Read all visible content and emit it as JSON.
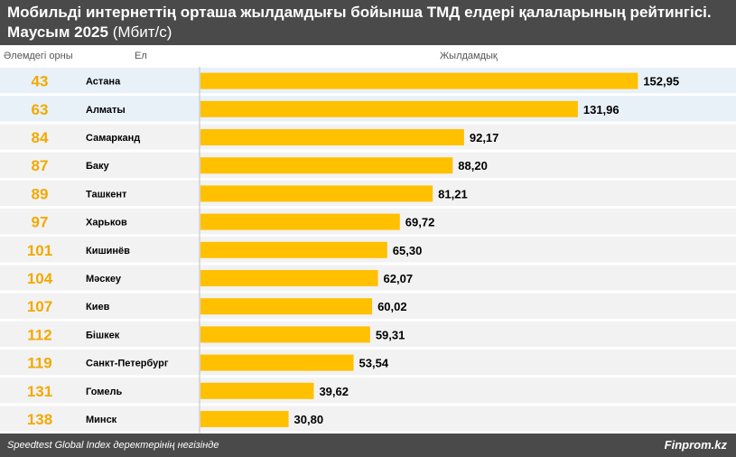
{
  "header": {
    "title_line1": "Мобильді интернеттің орташа жылдамдығы бойынша ТМД елдері қалаларының рейтингісі.",
    "title_line2_bold": "Маусым 2025",
    "title_line2_unit": "(Мбит/с)"
  },
  "columns": {
    "rank": "Әлемдегі орны",
    "city": "Ел",
    "speed": "Жылдамдық"
  },
  "colors": {
    "bar": "#FFC000",
    "rank_text": "#F2A900",
    "highlight_row": "#E8F1F8",
    "alt_row": "#F2F2F2"
  },
  "chart_data": {
    "type": "bar",
    "orientation": "horizontal",
    "categories": [
      "Астана",
      "Алматы",
      "Самарканд",
      "Баку",
      "Ташкент",
      "Харьков",
      "Кишинёв",
      "Мәскеу",
      "Киев",
      "Бішкек",
      "Санкт-Петербург",
      "Гомель",
      "Минск"
    ],
    "ranks": [
      "43",
      "63",
      "84",
      "87",
      "89",
      "97",
      "101",
      "104",
      "107",
      "112",
      "119",
      "131",
      "138"
    ],
    "values": [
      152.95,
      131.96,
      92.17,
      88.2,
      81.21,
      69.72,
      65.3,
      62.07,
      60.02,
      59.31,
      53.54,
      39.62,
      30.8
    ],
    "value_labels": [
      "152,95",
      "131,96",
      "92,17",
      "88,20",
      "81,21",
      "69,72",
      "65,30",
      "62,07",
      "60,02",
      "59,31",
      "53,54",
      "39,62",
      "30,80"
    ],
    "highlighted": [
      0,
      1
    ],
    "xlim": [
      0,
      180
    ]
  },
  "footer": {
    "source": "Speedtest Global Index деректерінің негізінде",
    "brand": "Finprom.kz"
  }
}
